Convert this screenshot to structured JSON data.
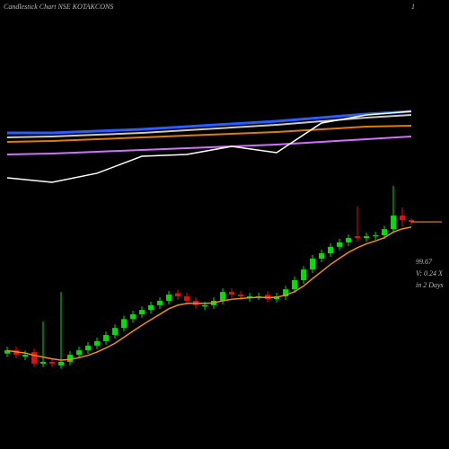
{
  "chart_data": {
    "type": "candlestick",
    "title": "Candlestick Chart NSE KOTAKCONS",
    "corner_label": "1",
    "annotations": [
      "99.67",
      "V: 0.24  X",
      "in 2 Days"
    ],
    "up_color": "#00e000",
    "down_color": "#e01010",
    "ylim": [
      47,
      114
    ],
    "open": [
      55.0,
      56.1,
      54.0,
      55.5,
      51.6,
      52.2,
      51.0,
      52.2,
      54.6,
      56.1,
      57.7,
      59.2,
      61.3,
      63.7,
      66.7,
      68.3,
      69.8,
      71.4,
      72.9,
      75.5,
      74.4,
      72.9,
      71.0,
      71.4,
      72.9,
      75.9,
      75.0,
      73.8,
      74.4,
      74.9,
      73.5,
      74.4,
      76.8,
      79.9,
      83.5,
      87.2,
      89.0,
      91.2,
      92.7,
      94.8,
      94.2,
      94.8,
      95.1,
      97.2,
      101.8,
      100.3
    ],
    "high": [
      57.3,
      57.3,
      56.0,
      56.7,
      65.9,
      53.4,
      75.9,
      55.8,
      57.3,
      58.9,
      60.4,
      62.5,
      64.9,
      67.9,
      69.5,
      71.0,
      72.6,
      74.1,
      76.2,
      76.7,
      75.6,
      74.1,
      72.6,
      74.1,
      77.1,
      77.1,
      76.2,
      75.6,
      75.6,
      76.1,
      75.6,
      78.0,
      81.1,
      84.7,
      88.4,
      90.2,
      92.4,
      93.9,
      95.4,
      104.9,
      96.0,
      96.3,
      98.4,
      111.9,
      104.5,
      100.9
    ],
    "low": [
      53.8,
      53.4,
      52.8,
      50.4,
      50.4,
      50.4,
      49.8,
      51.0,
      53.4,
      54.9,
      56.5,
      58.0,
      60.1,
      62.5,
      65.5,
      67.1,
      68.6,
      70.2,
      71.7,
      73.2,
      71.7,
      70.2,
      69.8,
      70.2,
      71.7,
      73.8,
      73.2,
      72.6,
      73.2,
      72.3,
      72.3,
      73.2,
      75.6,
      78.7,
      82.3,
      86.0,
      87.8,
      90.0,
      91.5,
      93.0,
      93.0,
      93.6,
      93.9,
      96.0,
      98.0,
      98.5
    ],
    "close": [
      56.1,
      54.6,
      54.6,
      51.6,
      52.2,
      51.6,
      52.2,
      54.6,
      56.1,
      57.7,
      59.2,
      61.3,
      63.7,
      66.7,
      68.3,
      69.8,
      71.4,
      72.9,
      75.0,
      74.4,
      72.9,
      71.4,
      71.4,
      72.9,
      75.9,
      75.0,
      74.4,
      74.4,
      74.4,
      73.5,
      74.4,
      76.8,
      79.9,
      83.5,
      87.2,
      89.0,
      91.2,
      92.7,
      94.2,
      94.2,
      94.8,
      95.1,
      97.2,
      101.8,
      100.3,
      99.67
    ],
    "ma": {
      "color": "#f08c1a",
      "values": [
        56,
        55.6,
        55.2,
        54.4,
        53.8,
        53.2,
        52.8,
        53.0,
        53.6,
        54.4,
        55.5,
        56.9,
        58.5,
        60.5,
        62.6,
        64.6,
        66.5,
        68.3,
        70.2,
        71.4,
        72.0,
        72.1,
        72.0,
        72.2,
        72.9,
        73.4,
        73.7,
        73.9,
        74.1,
        74.0,
        74.1,
        74.8,
        76.0,
        77.9,
        80.4,
        82.8,
        85.2,
        87.3,
        89.3,
        90.9,
        92.2,
        93.2,
        94.3,
        96.2,
        97.3,
        97.9
      ]
    },
    "indicator": {
      "ylim": [
        0,
        100
      ],
      "x": [
        0,
        5,
        10,
        15,
        20,
        25,
        30,
        35,
        40,
        45
      ],
      "series": [
        {
          "color": "#d070ff",
          "values": [
            34.5,
            35.5,
            37.3,
            39.1,
            40.9,
            42.7,
            44.5,
            47.3,
            50,
            52.7
          ]
        },
        {
          "color": "#e07a10",
          "values": [
            47.3,
            48.2,
            50,
            51.8,
            53.6,
            55.5,
            57.3,
            60,
            62.7,
            63.6
          ]
        },
        {
          "color": "#c8c8c8",
          "values": [
            51.8,
            52.7,
            54.5,
            56.4,
            59.1,
            61.8,
            64.5,
            68.2,
            71.8,
            74.5
          ]
        },
        {
          "color": "#2a5cff",
          "values": [
            56.4,
            56.4,
            58.2,
            60,
            62.7,
            65.5,
            68.2,
            71.8,
            75.5,
            78.2
          ]
        },
        {
          "color": "#ffffff",
          "values": [
            10.9,
            6.4,
            15.5,
            32.7,
            34.5,
            42.7,
            36.4,
            66.4,
            74.5,
            78.2
          ]
        }
      ]
    }
  }
}
